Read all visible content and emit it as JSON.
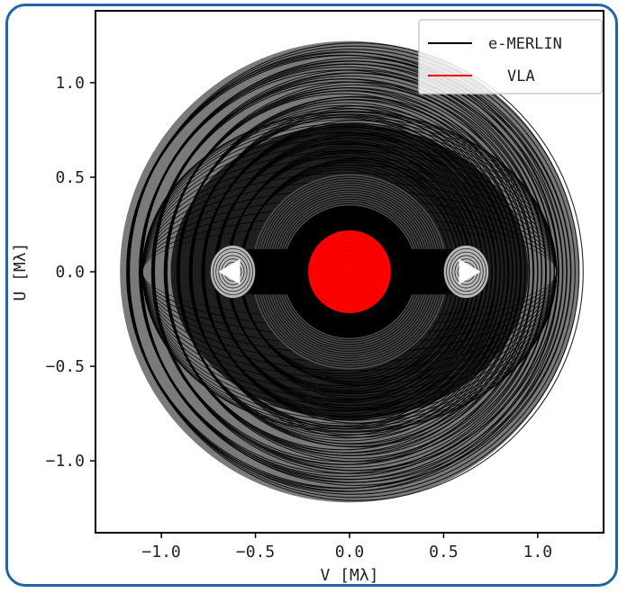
{
  "chart_data": {
    "type": "scatter",
    "title": "",
    "xlabel": "V [Mλ]",
    "ylabel": "U [Mλ]",
    "xlim": [
      -1.35,
      1.35
    ],
    "ylim": [
      -1.38,
      1.38
    ],
    "xticks": [
      -1.0,
      -0.5,
      0.0,
      0.5,
      1.0
    ],
    "yticks": [
      -1.0,
      -0.5,
      0.0,
      0.5,
      1.0
    ],
    "xtick_labels": [
      "−1.0",
      "−0.5",
      "0.0",
      "0.5",
      "1.0"
    ],
    "ytick_labels": [
      "−1.0",
      "−0.5",
      "0.0",
      "0.5",
      "1.0"
    ],
    "grid": false,
    "legend": {
      "placement": "top-right",
      "entries": [
        {
          "label": "e-MERLIN",
          "color": "#000000"
        },
        {
          "label": "VLA",
          "color": "#ff0000"
        }
      ]
    },
    "series": [
      {
        "name": "e-MERLIN",
        "color": "#000000",
        "description_radii": {
          "outer_disk": 1.22,
          "inner_ring_outer": 0.52,
          "inner_ring_inner": 0.35,
          "lobe_center_v": 0.62,
          "lobe_half_width": 0.12,
          "lobe_half_height": 0.14
        }
      },
      {
        "name": "VLA",
        "color": "#ff0000",
        "radius": 0.22
      }
    ]
  }
}
